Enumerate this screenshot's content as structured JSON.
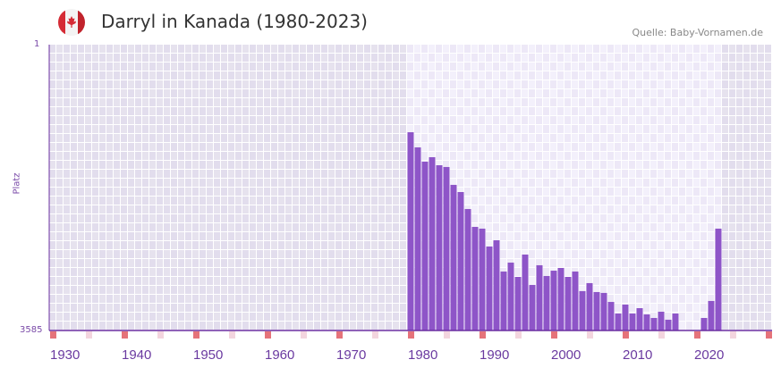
{
  "header": {
    "title": "Darryl in Kanada (1980-2023)",
    "source": "Quelle: Baby-Vornamen.de",
    "flag_icon": "canada-flag-icon"
  },
  "colors": {
    "bar": "#8e55c8",
    "axis": "#6a2fa0",
    "marker_dark": "#e5737a",
    "marker_light": "#f3d5de"
  },
  "chart_data": {
    "type": "bar",
    "title": "Darryl in Kanada (1980-2023)",
    "xlabel": "",
    "ylabel": "Platz",
    "ylim": [
      3585,
      1
    ],
    "ytick_labels": [
      "1",
      "3585"
    ],
    "xlim": [
      1930,
      2031
    ],
    "xtick_labels": [
      "1930",
      "1940",
      "1950",
      "1960",
      "1970",
      "1980",
      "1990",
      "2000",
      "2010",
      "2020"
    ],
    "years": [
      1980,
      1981,
      1982,
      1983,
      1984,
      1985,
      1986,
      1987,
      1988,
      1989,
      1990,
      1991,
      1992,
      1993,
      1994,
      1995,
      1996,
      1997,
      1998,
      1999,
      2000,
      2001,
      2002,
      2003,
      2004,
      2005,
      2006,
      2007,
      2008,
      2009,
      2010,
      2011,
      2012,
      2013,
      2014,
      2015,
      2016,
      2017,
      2021,
      2022,
      2023
    ],
    "values": [
      1099,
      1289,
      1468,
      1412,
      1513,
      1535,
      1759,
      1849,
      2062,
      2286,
      2308,
      2532,
      2454,
      2846,
      2734,
      2913,
      2633,
      3014,
      2767,
      2902,
      2835,
      2801,
      2913,
      2846,
      3091,
      2991,
      3103,
      3114,
      3227,
      3372,
      3260,
      3372,
      3305,
      3383,
      3428,
      3350,
      3450,
      3372,
      3428,
      3215,
      2308
    ]
  }
}
